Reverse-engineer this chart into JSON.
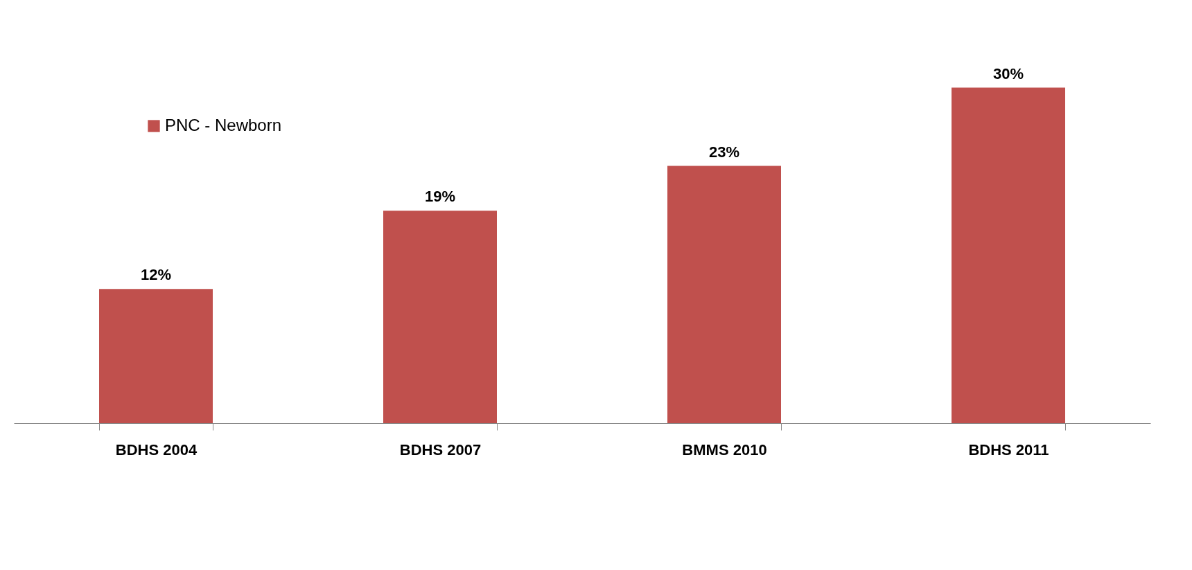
{
  "chart_data": {
    "type": "bar",
    "categories": [
      "BDHS 2004",
      "BDHS 2007",
      "BMMS 2010",
      "BDHS 2011"
    ],
    "series": [
      {
        "name": "PNC - Newborn",
        "color": "#c0504d",
        "values": [
          12,
          19,
          23,
          30
        ],
        "value_labels": [
          "12%",
          "19%",
          "23%",
          "30%"
        ]
      }
    ],
    "legend": "top left",
    "grid": false
  }
}
